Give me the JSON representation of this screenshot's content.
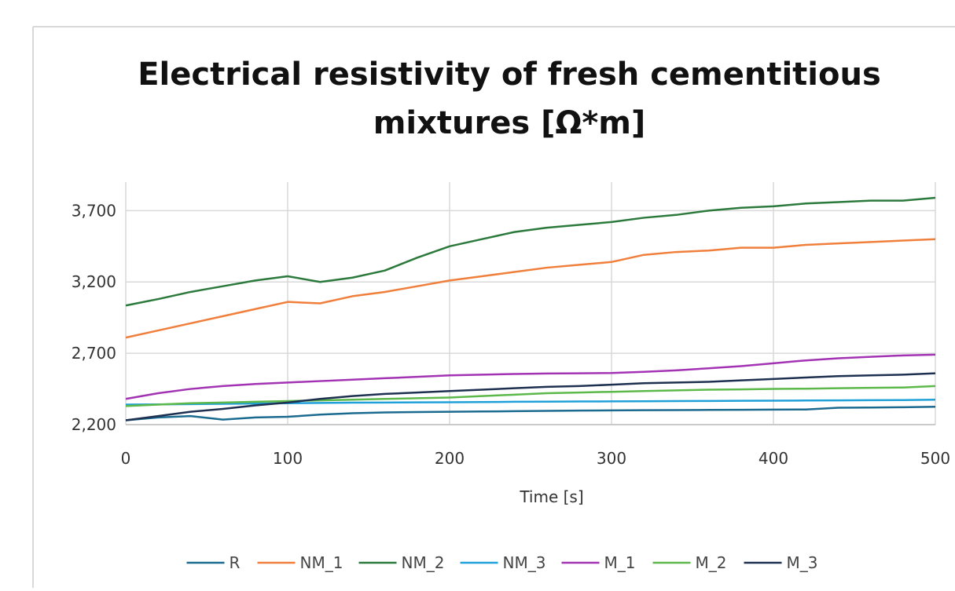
{
  "chart_data": {
    "type": "line",
    "title": "Electrical resistivity of fresh cementitious mixtures [Ω*m]",
    "x_label": "Time [s]",
    "x": [
      0,
      20,
      40,
      60,
      80,
      100,
      120,
      140,
      160,
      180,
      200,
      220,
      240,
      260,
      280,
      300,
      320,
      340,
      360,
      380,
      400,
      420,
      440,
      460,
      480,
      500
    ],
    "series": [
      {
        "name": "R",
        "color": "#1b6a8f",
        "values": [
          2230,
          2250,
          2260,
          2235,
          2250,
          2255,
          2270,
          2280,
          2285,
          2288,
          2290,
          2292,
          2294,
          2296,
          2298,
          2300,
          2301,
          2302,
          2303,
          2304,
          2305,
          2306,
          2318,
          2320,
          2322,
          2325
        ]
      },
      {
        "name": "NM_1",
        "color": "#f07f3c",
        "values": [
          2810,
          2860,
          2910,
          2960,
          3010,
          3060,
          3050,
          3100,
          3130,
          3170,
          3210,
          3240,
          3270,
          3300,
          3320,
          3340,
          3390,
          3410,
          3420,
          3440,
          3440,
          3460,
          3470,
          3480,
          3490,
          3500
        ]
      },
      {
        "name": "NM_2",
        "color": "#2b7a3c",
        "values": [
          3035,
          3080,
          3130,
          3170,
          3210,
          3240,
          3200,
          3230,
          3280,
          3370,
          3450,
          3500,
          3550,
          3580,
          3600,
          3620,
          3650,
          3670,
          3700,
          3720,
          3730,
          3750,
          3760,
          3770,
          3770,
          3790
        ]
      },
      {
        "name": "NM_3",
        "color": "#1fa0d8",
        "values": [
          2340,
          2342,
          2344,
          2346,
          2348,
          2350,
          2352,
          2354,
          2355,
          2356,
          2357,
          2358,
          2360,
          2361,
          2362,
          2363,
          2364,
          2365,
          2366,
          2367,
          2368,
          2369,
          2370,
          2371,
          2372,
          2375
        ]
      },
      {
        "name": "M_1",
        "color": "#a233b3",
        "values": [
          2380,
          2420,
          2450,
          2470,
          2485,
          2495,
          2505,
          2515,
          2525,
          2535,
          2545,
          2550,
          2555,
          2558,
          2560,
          2562,
          2570,
          2580,
          2595,
          2610,
          2630,
          2650,
          2665,
          2675,
          2685,
          2690
        ]
      },
      {
        "name": "M_2",
        "color": "#5cb84a",
        "values": [
          2330,
          2340,
          2350,
          2355,
          2360,
          2365,
          2370,
          2375,
          2380,
          2385,
          2390,
          2400,
          2410,
          2420,
          2425,
          2430,
          2435,
          2440,
          2445,
          2447,
          2450,
          2452,
          2455,
          2458,
          2460,
          2470
        ]
      },
      {
        "name": "M_3",
        "color": "#1e3050",
        "values": [
          2230,
          2260,
          2290,
          2310,
          2335,
          2355,
          2380,
          2400,
          2415,
          2425,
          2435,
          2445,
          2455,
          2465,
          2470,
          2480,
          2490,
          2495,
          2500,
          2510,
          2520,
          2530,
          2540,
          2545,
          2550,
          2560
        ]
      }
    ],
    "xlim": [
      0,
      500
    ],
    "xticks": [
      0,
      100,
      200,
      300,
      400,
      500
    ],
    "ylim": [
      2200,
      3900
    ],
    "yticks": [
      {
        "value": 2200,
        "label": "2,200"
      },
      {
        "value": 2700,
        "label": "2,700"
      },
      {
        "value": 3200,
        "label": "3,200"
      },
      {
        "value": 3700,
        "label": "3,700"
      }
    ],
    "grid": true,
    "legend": "bottom"
  }
}
